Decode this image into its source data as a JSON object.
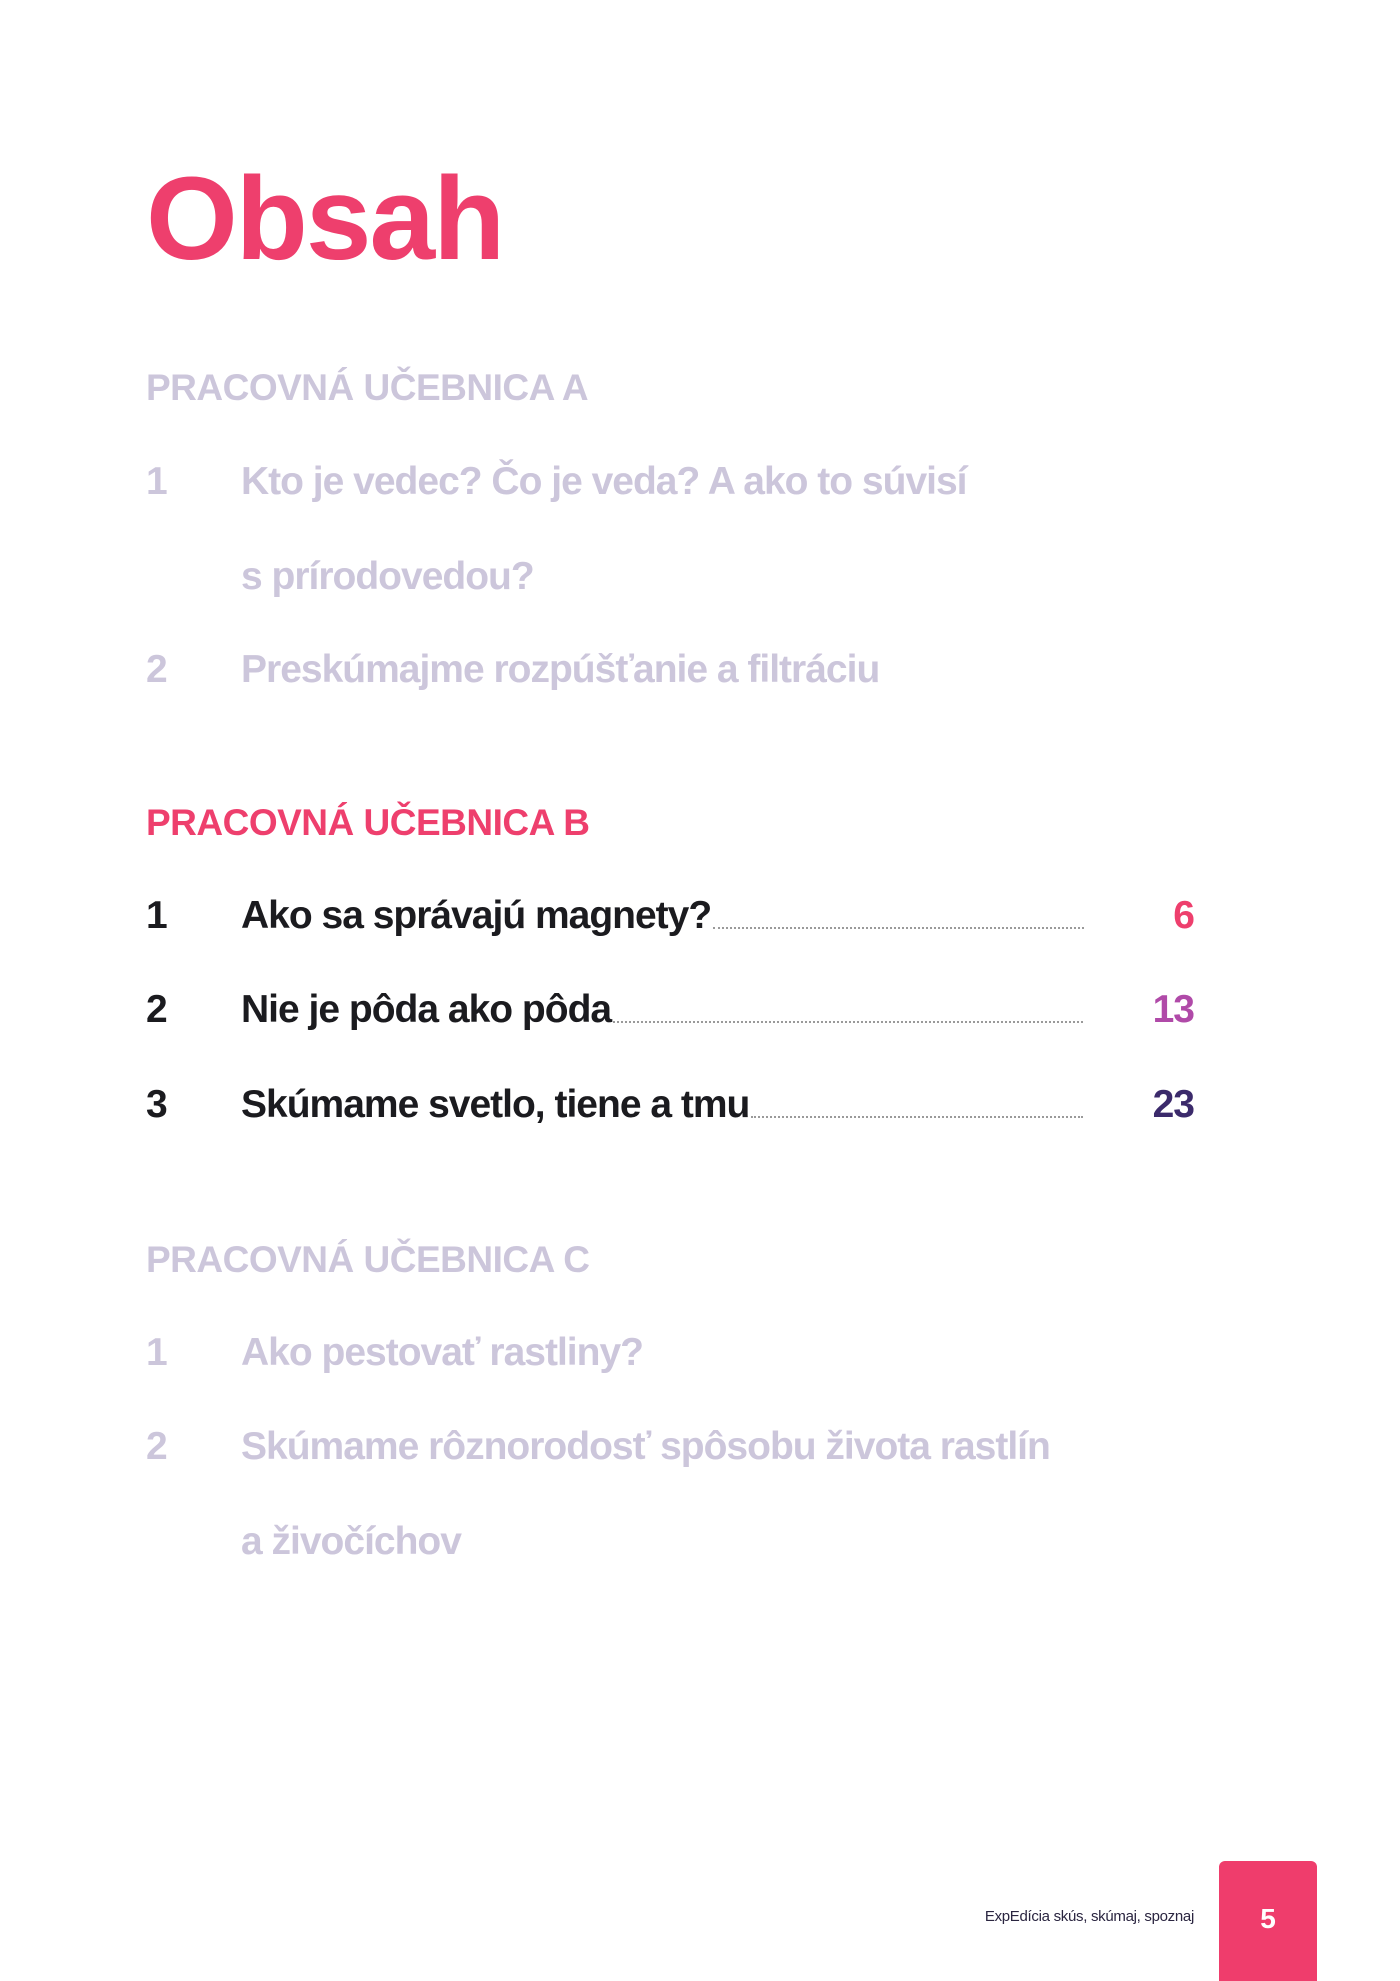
{
  "title": "Obsah",
  "colors": {
    "accent": "#ee3f6d",
    "dimmed": "#ccc6db",
    "text": "#1b1b1f",
    "page_13": "#b04aa8",
    "page_23": "#3b2a6b"
  },
  "sections": [
    {
      "heading": "PRACOVNÁ UČEBNICA A",
      "state": "dimmed",
      "items": [
        {
          "num": "1",
          "lines": [
            "Kto je vedec? Čo je veda? A ako to súvisí",
            "s prírodovedou?"
          ]
        },
        {
          "num": "2",
          "lines": [
            "Preskúmajme rozpúšťanie a filtráciu"
          ]
        }
      ]
    },
    {
      "heading": "PRACOVNÁ UČEBNICA B",
      "state": "active",
      "items": [
        {
          "num": "1",
          "title": "Ako sa správajú magnety?",
          "page": "6"
        },
        {
          "num": "2",
          "title": "Nie je pôda ako pôda",
          "page": "13"
        },
        {
          "num": "3",
          "title": "Skúmame svetlo, tiene a tmu",
          "page": "23"
        }
      ]
    },
    {
      "heading": "PRACOVNÁ UČEBNICA C",
      "state": "dimmed",
      "items": [
        {
          "num": "1",
          "lines": [
            "Ako pestovať rastliny?"
          ]
        },
        {
          "num": "2",
          "lines": [
            "Skúmame rôznorodosť spôsobu života rastlín",
            "a živočíchov"
          ]
        }
      ]
    }
  ],
  "footer": {
    "text": "ExpEdícia skús, skúmaj, spoznaj",
    "page_number": "5"
  }
}
